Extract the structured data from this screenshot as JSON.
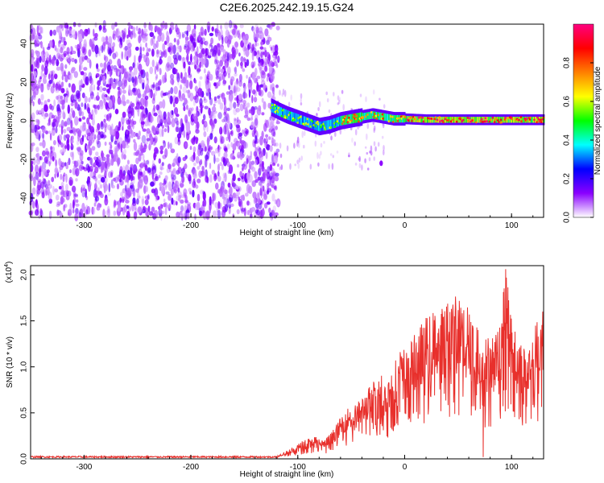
{
  "figure": {
    "title": "C2E6.2025.242.19.15.G24"
  },
  "chart_data": [
    {
      "type": "heatmap",
      "title": "C2E6.2025.242.19.15.G24",
      "xlabel": "Height of straight line (km)",
      "ylabel": "Frequency (Hz)",
      "xlim": [
        -350,
        130
      ],
      "ylim": [
        -50,
        50
      ],
      "x_ticks": [
        -300,
        -200,
        -100,
        0,
        100
      ],
      "y_ticks": [
        -40,
        -20,
        0,
        20,
        40
      ],
      "noise_region_x": [
        -350,
        -118
      ],
      "signal_track": [
        {
          "x": -125,
          "f": 7
        },
        {
          "x": -118,
          "f": 5
        },
        {
          "x": -110,
          "f": 3
        },
        {
          "x": -100,
          "f": 1
        },
        {
          "x": -90,
          "f": -1
        },
        {
          "x": -80,
          "f": -3
        },
        {
          "x": -70,
          "f": -2
        },
        {
          "x": -60,
          "f": 0
        },
        {
          "x": -50,
          "f": 1
        },
        {
          "x": -40,
          "f": 2
        },
        {
          "x": -30,
          "f": 3
        },
        {
          "x": -20,
          "f": 2
        },
        {
          "x": -10,
          "f": 1
        },
        {
          "x": 0,
          "f": 1
        },
        {
          "x": 20,
          "f": 0.5
        },
        {
          "x": 40,
          "f": 0.5
        },
        {
          "x": 60,
          "f": 0.5
        },
        {
          "x": 80,
          "f": 0.5
        },
        {
          "x": 100,
          "f": 0.5
        },
        {
          "x": 130,
          "f": 0.5
        }
      ],
      "colorbar": {
        "label": "Normalized spectral amplitude",
        "range": [
          0.0,
          1.0
        ],
        "ticks": [
          "0.0",
          "0.2",
          "0.4",
          "0.6",
          "0.8"
        ],
        "colormap": [
          "#ffffff",
          "#8a00ff",
          "#0000ff",
          "#00ffff",
          "#00ff00",
          "#ffff00",
          "#ff8000",
          "#ff0000",
          "#ff0080"
        ]
      },
      "grid": false
    },
    {
      "type": "line",
      "xlabel": "Height of straight line (km)",
      "ylabel": "SNR (10 * v/v)",
      "yscale_label": "(x10",
      "yscale_exp": "4",
      "yscale_close": ")",
      "xlim": [
        -350,
        130
      ],
      "ylim": [
        0,
        2.1
      ],
      "x_ticks": [
        -300,
        -200,
        -100,
        0,
        100
      ],
      "y_ticks": [
        "0.0",
        "0.5",
        "1.0",
        "1.5",
        "2.0"
      ],
      "series": [
        {
          "color": "#e8302c",
          "envelope": [
            [
              -350,
              0.02
            ],
            [
              -120,
              0.03
            ],
            [
              -105,
              0.12
            ],
            [
              -95,
              0.2
            ],
            [
              -85,
              0.25
            ],
            [
              -75,
              0.2
            ],
            [
              -65,
              0.35
            ],
            [
              -55,
              0.55
            ],
            [
              -45,
              0.6
            ],
            [
              -35,
              0.75
            ],
            [
              -25,
              0.95
            ],
            [
              -15,
              0.9
            ],
            [
              -5,
              1.2
            ],
            [
              5,
              1.25
            ],
            [
              15,
              1.5
            ],
            [
              25,
              1.6
            ],
            [
              35,
              1.65
            ],
            [
              45,
              1.8
            ],
            [
              55,
              1.75
            ],
            [
              65,
              1.5
            ],
            [
              75,
              1.35
            ],
            [
              85,
              1.4
            ],
            [
              95,
              2.1
            ],
            [
              105,
              1.35
            ],
            [
              115,
              1.2
            ],
            [
              125,
              1.55
            ],
            [
              130,
              1.7
            ]
          ]
        }
      ],
      "grid": false
    }
  ]
}
